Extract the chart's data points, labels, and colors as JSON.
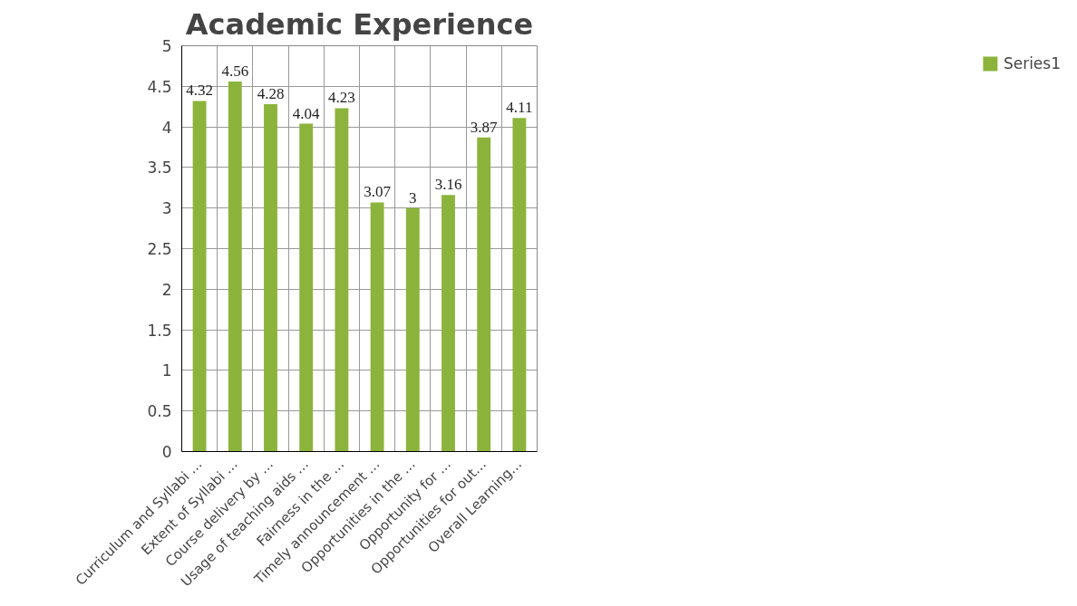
{
  "chart_data": {
    "type": "bar",
    "title": "Academic Experience",
    "categories": [
      "Curriculum and Syllabi …",
      "Extent of Syllabi …",
      "Course delivery by …",
      "Usage of teaching aids …",
      "Fairness in the …",
      "Timely announcement …",
      "Opportunities in the …",
      "Opportunity for …",
      "Opportunities for out…",
      "Overall Learning…"
    ],
    "series": [
      {
        "name": "Series1",
        "color": "#8cb43c",
        "values": [
          4.32,
          4.56,
          4.28,
          4.04,
          4.23,
          3.07,
          3,
          3.16,
          3.87,
          4.11
        ]
      }
    ],
    "ylim": [
      0,
      5
    ],
    "yticks": [
      0,
      0.5,
      1,
      1.5,
      2,
      2.5,
      3,
      3.5,
      4,
      4.5,
      5
    ],
    "data_labels": true,
    "grid": true,
    "legend": "right"
  }
}
